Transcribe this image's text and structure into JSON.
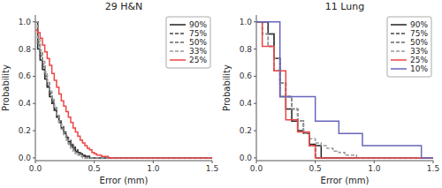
{
  "chart_data": [
    {
      "type": "step",
      "title": "29 H&N",
      "xlabel": "Error (mm)",
      "ylabel": "Probability",
      "xlim": [
        0,
        1.5
      ],
      "ylim": [
        -0.02,
        1.05
      ],
      "xticks": [
        {
          "value": 0,
          "label": "0.0"
        },
        0.5,
        {
          "value": 1,
          "label": "1.0"
        },
        1.5
      ],
      "yticks": [
        {
          "value": 0,
          "label": "0.0"
        },
        0.2,
        0.4,
        0.6,
        0.8,
        {
          "value": 1,
          "label": "1.0"
        }
      ],
      "legend": "upper-right",
      "series": [
        {
          "name": "90%",
          "color": "#222222",
          "line_style": "solid",
          "x": [
            0.0,
            0.02,
            0.04,
            0.06,
            0.08,
            0.1,
            0.12,
            0.14,
            0.16,
            0.18,
            0.2,
            0.22,
            0.24,
            0.26,
            0.28,
            0.3,
            0.32,
            0.34,
            0.36,
            0.38,
            0.4,
            0.42,
            0.44,
            0.46,
            0.48,
            0.5,
            0.52,
            1.5
          ],
          "values": [
            1.0,
            0.8,
            0.72,
            0.65,
            0.58,
            0.52,
            0.45,
            0.4,
            0.35,
            0.3,
            0.26,
            0.22,
            0.18,
            0.15,
            0.12,
            0.09,
            0.07,
            0.05,
            0.04,
            0.03,
            0.02,
            0.01,
            0.01,
            0.0,
            0.0,
            0.0,
            0.0,
            0.0
          ]
        },
        {
          "name": "75%",
          "color": "#444444",
          "line_style": "dashed",
          "x": [
            0.0,
            0.02,
            0.04,
            0.06,
            0.08,
            0.1,
            0.12,
            0.14,
            0.16,
            0.18,
            0.2,
            0.22,
            0.24,
            0.26,
            0.28,
            0.3,
            0.32,
            0.34,
            0.36,
            0.38,
            0.4,
            0.42,
            0.44,
            0.46,
            0.48,
            0.5,
            1.5
          ],
          "values": [
            1.0,
            0.83,
            0.75,
            0.67,
            0.6,
            0.53,
            0.47,
            0.41,
            0.36,
            0.31,
            0.27,
            0.23,
            0.19,
            0.16,
            0.13,
            0.1,
            0.08,
            0.06,
            0.04,
            0.03,
            0.02,
            0.01,
            0.01,
            0.0,
            0.0,
            0.0,
            0.0
          ]
        },
        {
          "name": "50%",
          "color": "#666666",
          "line_style": "dashed",
          "x": [
            0.0,
            0.02,
            0.04,
            0.06,
            0.08,
            0.1,
            0.12,
            0.14,
            0.16,
            0.18,
            0.2,
            0.22,
            0.24,
            0.26,
            0.28,
            0.3,
            0.32,
            0.34,
            0.36,
            0.38,
            0.4,
            0.42,
            0.44,
            1.5
          ],
          "values": [
            1.0,
            0.85,
            0.77,
            0.69,
            0.62,
            0.55,
            0.48,
            0.42,
            0.37,
            0.31,
            0.27,
            0.22,
            0.18,
            0.14,
            0.11,
            0.08,
            0.06,
            0.04,
            0.03,
            0.02,
            0.01,
            0.0,
            0.0,
            0.0
          ]
        },
        {
          "name": "33%",
          "color": "#999999",
          "line_style": "dashed",
          "x": [
            0.0,
            0.02,
            0.04,
            0.06,
            0.08,
            0.1,
            0.12,
            0.14,
            0.16,
            0.18,
            0.2,
            0.22,
            0.24,
            0.26,
            0.28,
            0.3,
            0.32,
            0.34,
            0.36,
            0.38,
            0.4,
            1.5
          ],
          "values": [
            1.0,
            0.87,
            0.79,
            0.71,
            0.63,
            0.56,
            0.49,
            0.43,
            0.37,
            0.31,
            0.26,
            0.21,
            0.17,
            0.13,
            0.1,
            0.07,
            0.05,
            0.03,
            0.02,
            0.01,
            0.0,
            0.0
          ]
        },
        {
          "name": "25%",
          "color": "#ee4444",
          "line_style": "solid",
          "x": [
            0.0,
            0.02,
            0.04,
            0.06,
            0.08,
            0.1,
            0.12,
            0.14,
            0.16,
            0.18,
            0.2,
            0.22,
            0.24,
            0.26,
            0.28,
            0.3,
            0.32,
            0.34,
            0.36,
            0.38,
            0.4,
            0.42,
            0.44,
            0.46,
            0.48,
            0.5,
            0.52,
            0.54,
            0.56,
            0.58,
            0.6,
            0.62,
            0.64,
            0.66,
            0.68,
            0.7,
            1.5
          ],
          "values": [
            0.94,
            0.92,
            0.88,
            0.83,
            0.78,
            0.73,
            0.68,
            0.62,
            0.57,
            0.52,
            0.47,
            0.42,
            0.38,
            0.34,
            0.3,
            0.26,
            0.22,
            0.19,
            0.16,
            0.13,
            0.11,
            0.09,
            0.07,
            0.06,
            0.04,
            0.03,
            0.02,
            0.02,
            0.01,
            0.01,
            0.01,
            0.0,
            0.0,
            0.0,
            0.0,
            0.0,
            0.0
          ]
        }
      ]
    },
    {
      "type": "step",
      "title": "11 Lung",
      "xlabel": "Error (mm)",
      "ylabel": "Probability",
      "xlim": [
        0,
        1.5
      ],
      "ylim": [
        -0.02,
        1.05
      ],
      "xticks": [
        {
          "value": 0,
          "label": "0.0"
        },
        0.5,
        {
          "value": 1,
          "label": "1.0"
        },
        1.5
      ],
      "yticks": [
        {
          "value": 0,
          "label": "0.0"
        },
        0.2,
        0.4,
        0.6,
        0.8,
        {
          "value": 1,
          "label": "1.0"
        }
      ],
      "legend": "upper-right",
      "series": [
        {
          "name": "90%",
          "color": "#222222",
          "line_style": "solid",
          "x": [
            0.0,
            0.1,
            0.15,
            0.2,
            0.25,
            0.3,
            0.35,
            0.4,
            0.45,
            0.5,
            0.55,
            0.6,
            1.5
          ],
          "values": [
            1.0,
            0.91,
            0.73,
            0.45,
            0.36,
            0.27,
            0.2,
            0.18,
            0.1,
            0.09,
            0.0,
            0.0,
            0.0
          ]
        },
        {
          "name": "75%",
          "color": "#444444",
          "line_style": "dashed",
          "x": [
            0.0,
            0.1,
            0.15,
            0.2,
            0.25,
            0.3,
            0.35,
            0.4,
            0.45,
            0.5,
            0.55,
            1.5
          ],
          "values": [
            1.0,
            0.91,
            0.73,
            0.55,
            0.45,
            0.36,
            0.27,
            0.18,
            0.09,
            0.0,
            0.0,
            0.0
          ]
        },
        {
          "name": "50%",
          "color": "#666666",
          "line_style": "dashed",
          "x": [
            0.0,
            0.05,
            0.1,
            0.15,
            0.2,
            0.25,
            0.3,
            0.35,
            0.4,
            0.45,
            0.5,
            1.5
          ],
          "values": [
            1.0,
            0.91,
            0.82,
            0.64,
            0.55,
            0.45,
            0.36,
            0.27,
            0.18,
            0.09,
            0.0,
            0.0
          ]
        },
        {
          "name": "33%",
          "color": "#999999",
          "line_style": "dashed",
          "x": [
            0.0,
            0.05,
            0.1,
            0.15,
            0.2,
            0.25,
            0.3,
            0.35,
            0.4,
            0.45,
            0.5,
            0.55,
            0.6,
            0.65,
            0.7,
            0.75,
            0.8,
            0.85,
            0.9,
            0.95,
            1.0,
            1.5
          ],
          "values": [
            1.0,
            0.91,
            0.82,
            0.73,
            0.55,
            0.45,
            0.36,
            0.27,
            0.18,
            0.14,
            0.11,
            0.09,
            0.07,
            0.05,
            0.04,
            0.02,
            0.02,
            0.0,
            0.0,
            0.0,
            0.0,
            0.0
          ]
        },
        {
          "name": "25%",
          "color": "#ee4444",
          "line_style": "solid",
          "x": [
            0.0,
            0.05,
            0.1,
            0.15,
            0.2,
            0.25,
            0.3,
            0.35,
            0.4,
            0.45,
            0.5,
            0.55,
            1.5
          ],
          "values": [
            1.0,
            0.82,
            0.82,
            0.64,
            0.64,
            0.28,
            0.28,
            0.19,
            0.19,
            0.09,
            0.0,
            0.0,
            0.0
          ]
        },
        {
          "name": "10%",
          "color": "#6666bb",
          "line_style": "solid",
          "x": [
            0.0,
            0.1,
            0.2,
            0.3,
            0.4,
            0.5,
            0.6,
            0.7,
            0.8,
            0.9,
            1.0,
            1.1,
            1.2,
            1.3,
            1.4,
            1.5
          ],
          "values": [
            1.0,
            1.0,
            0.45,
            0.45,
            0.45,
            0.27,
            0.27,
            0.18,
            0.18,
            0.09,
            0.09,
            0.09,
            0.09,
            0.09,
            0.0,
            0.0
          ]
        }
      ]
    }
  ]
}
